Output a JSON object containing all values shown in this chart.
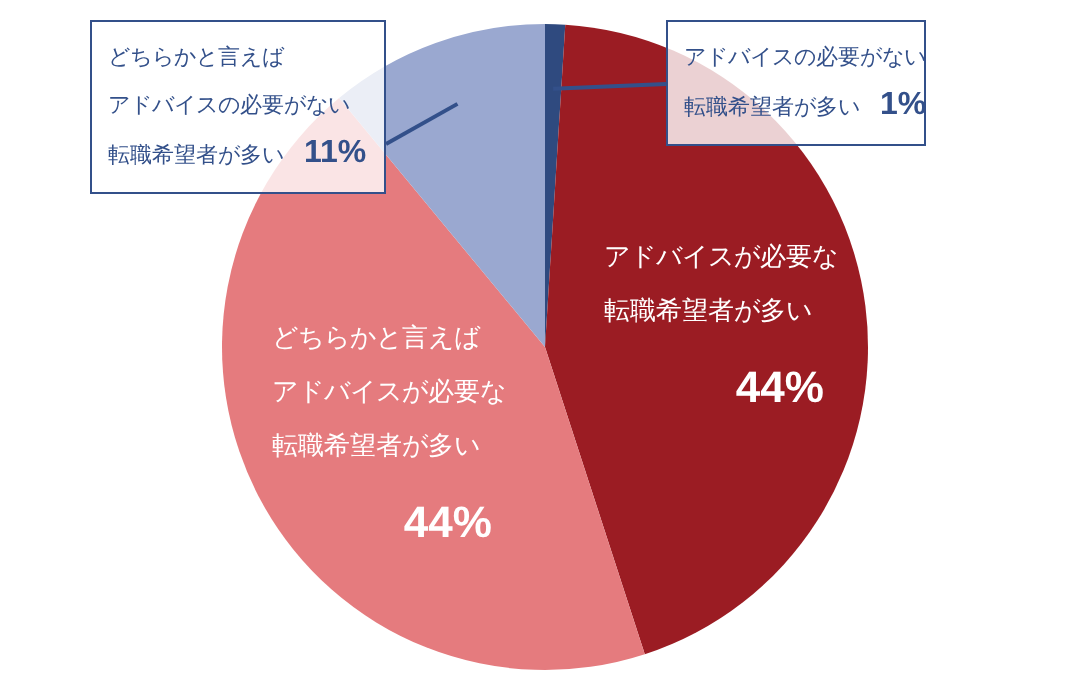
{
  "chart_data": {
    "type": "pie",
    "categories": [
      "アドバイスの必要がない転職希望者が多い",
      "アドバイスが必要な転職希望者が多い",
      "どちらかと言えばアドバイスが必要な転職希望者が多い",
      "どちらかと言えばアドバイスの必要がない転職希望者が多い"
    ],
    "values": [
      1,
      44,
      44,
      11
    ],
    "colors": [
      "#2f4a7f",
      "#9b1c23",
      "#e57b7e",
      "#9aa8d0"
    ],
    "value_labels": [
      "1%",
      "44%",
      "44%",
      "11%"
    ],
    "legend": false
  }
}
